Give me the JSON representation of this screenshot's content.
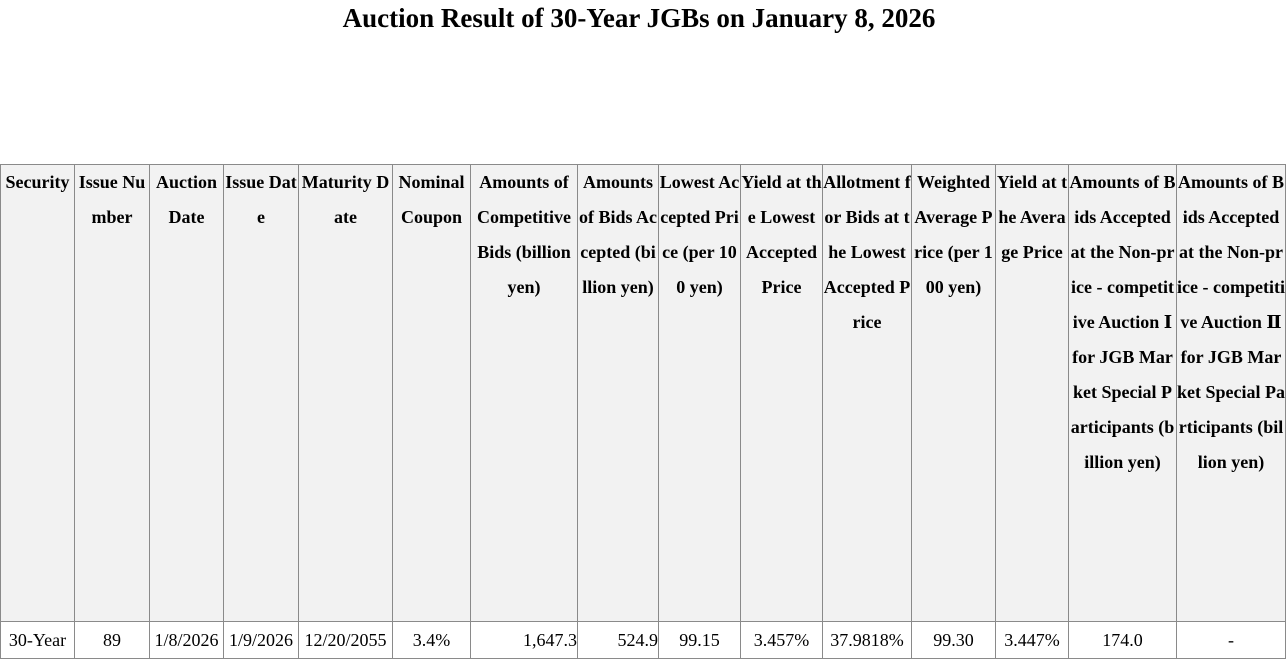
{
  "title": "Auction Result of 30-Year JGBs on January 8, 2026",
  "table": {
    "headers": [
      "Security",
      "Issue Number",
      "Auction Date",
      "Issue Date",
      "Maturity Date",
      "Nominal Coupon",
      "Amounts of Competitive Bids (billion yen)",
      "Amounts of Bids Accepted (billion yen)",
      "Lowest Accepted Price (per 100 yen)",
      "Yield at the Lowest Accepted Price",
      "Allotment for Bids at the Lowest Accepted Price",
      "Weighted Average Price (per 100 yen)",
      "Yield at the Average Price",
      "Amounts of Bids Accepted at the Non-price - competitive Auction Ⅰ for JGB Market Special Participants (billion yen)",
      "Amounts of Bids Accepted at the Non-price - competitive Auction Ⅱ for JGB Market Special Participants (billion yen)"
    ],
    "row": [
      "30-Year",
      "89",
      "1/8/2026",
      "1/9/2026",
      "12/20/2055",
      "3.4%",
      "1,647.3",
      "524.9",
      "99.15",
      "3.457%",
      "37.9818%",
      "99.30",
      "3.447%",
      "174.0",
      "-"
    ]
  }
}
